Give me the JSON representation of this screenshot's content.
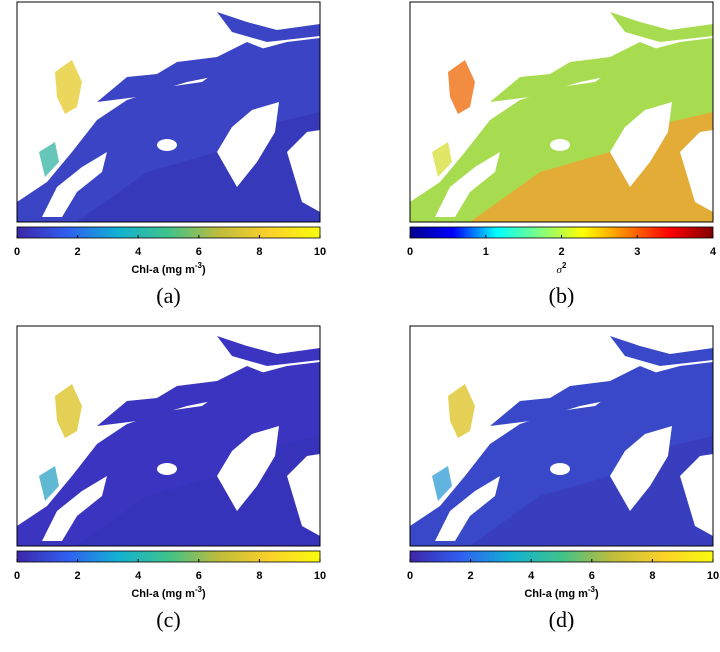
{
  "panels": [
    {
      "tag": "(a)",
      "colorbar": {
        "lim": [
          0,
          10
        ],
        "ticks": [
          0,
          2,
          4,
          6,
          8,
          10
        ],
        "label": "Chl-a (mg m",
        "label_sup": "-3",
        "label_end": ")",
        "colormap": [
          "#3e26a8",
          "#2f5ff0",
          "#12b1d3",
          "#3fc28a",
          "#bfbc3b",
          "#fbd12a",
          "#f9fb0e"
        ]
      }
    },
    {
      "tag": "(b)",
      "colorbar": {
        "lim": [
          0,
          4
        ],
        "ticks": [
          0,
          1,
          2,
          3,
          4
        ],
        "label": "σ",
        "label_sup": "2",
        "colormap": [
          "#00008f",
          "#0000ff",
          "#00ffff",
          "#80ff80",
          "#ffff00",
          "#ff8000",
          "#ff0000",
          "#800000"
        ]
      }
    },
    {
      "tag": "(c)",
      "colorbar": {
        "lim": [
          0,
          10
        ],
        "ticks": [
          0,
          2,
          4,
          6,
          8,
          10
        ],
        "label": "Chl-a (mg m",
        "label_sup": "-3",
        "label_end": ")",
        "colormap": [
          "#3e26a8",
          "#2f5ff0",
          "#12b1d3",
          "#3fc28a",
          "#bfbc3b",
          "#fbd12a",
          "#f9fb0e"
        ]
      }
    },
    {
      "tag": "(d)",
      "colorbar": {
        "lim": [
          0,
          10
        ],
        "ticks": [
          0,
          2,
          4,
          6,
          8,
          10
        ],
        "label": "Chl-a (mg m",
        "label_sup": "-3",
        "label_end": ")",
        "colormap": [
          "#3e26a8",
          "#2f5ff0",
          "#12b1d3",
          "#3fc28a",
          "#bfbc3b",
          "#fbd12a",
          "#f9fb0e"
        ]
      }
    }
  ]
}
